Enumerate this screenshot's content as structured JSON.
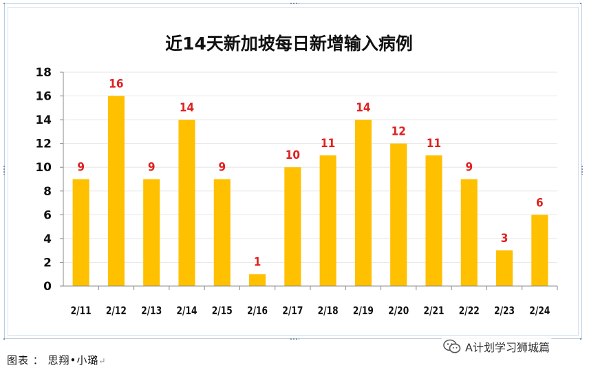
{
  "chart_data": {
    "type": "bar",
    "title": "近14天新加坡每日新增输入病例",
    "categories": [
      "2/11",
      "2/12",
      "2/13",
      "2/14",
      "2/15",
      "2/16",
      "2/17",
      "2/18",
      "2/19",
      "2/20",
      "2/21",
      "2/22",
      "2/23",
      "2/24"
    ],
    "values": [
      9,
      16,
      9,
      14,
      9,
      1,
      10,
      11,
      14,
      12,
      11,
      9,
      3,
      6
    ],
    "xlabel": "",
    "ylabel": "",
    "ylim": [
      0,
      18
    ],
    "yticks": [
      0,
      2,
      4,
      6,
      8,
      10,
      12,
      14,
      16,
      18
    ],
    "grid": true,
    "legend": "none",
    "data_labels": true,
    "bar_color": "#ffc000",
    "label_color": "#e02020"
  },
  "caption": {
    "text": "图表 ： 思翔•小璐",
    "enter_mark": "↵"
  },
  "watermark": {
    "text": "A计划学习狮城篇",
    "icon": "wechat-icon"
  }
}
